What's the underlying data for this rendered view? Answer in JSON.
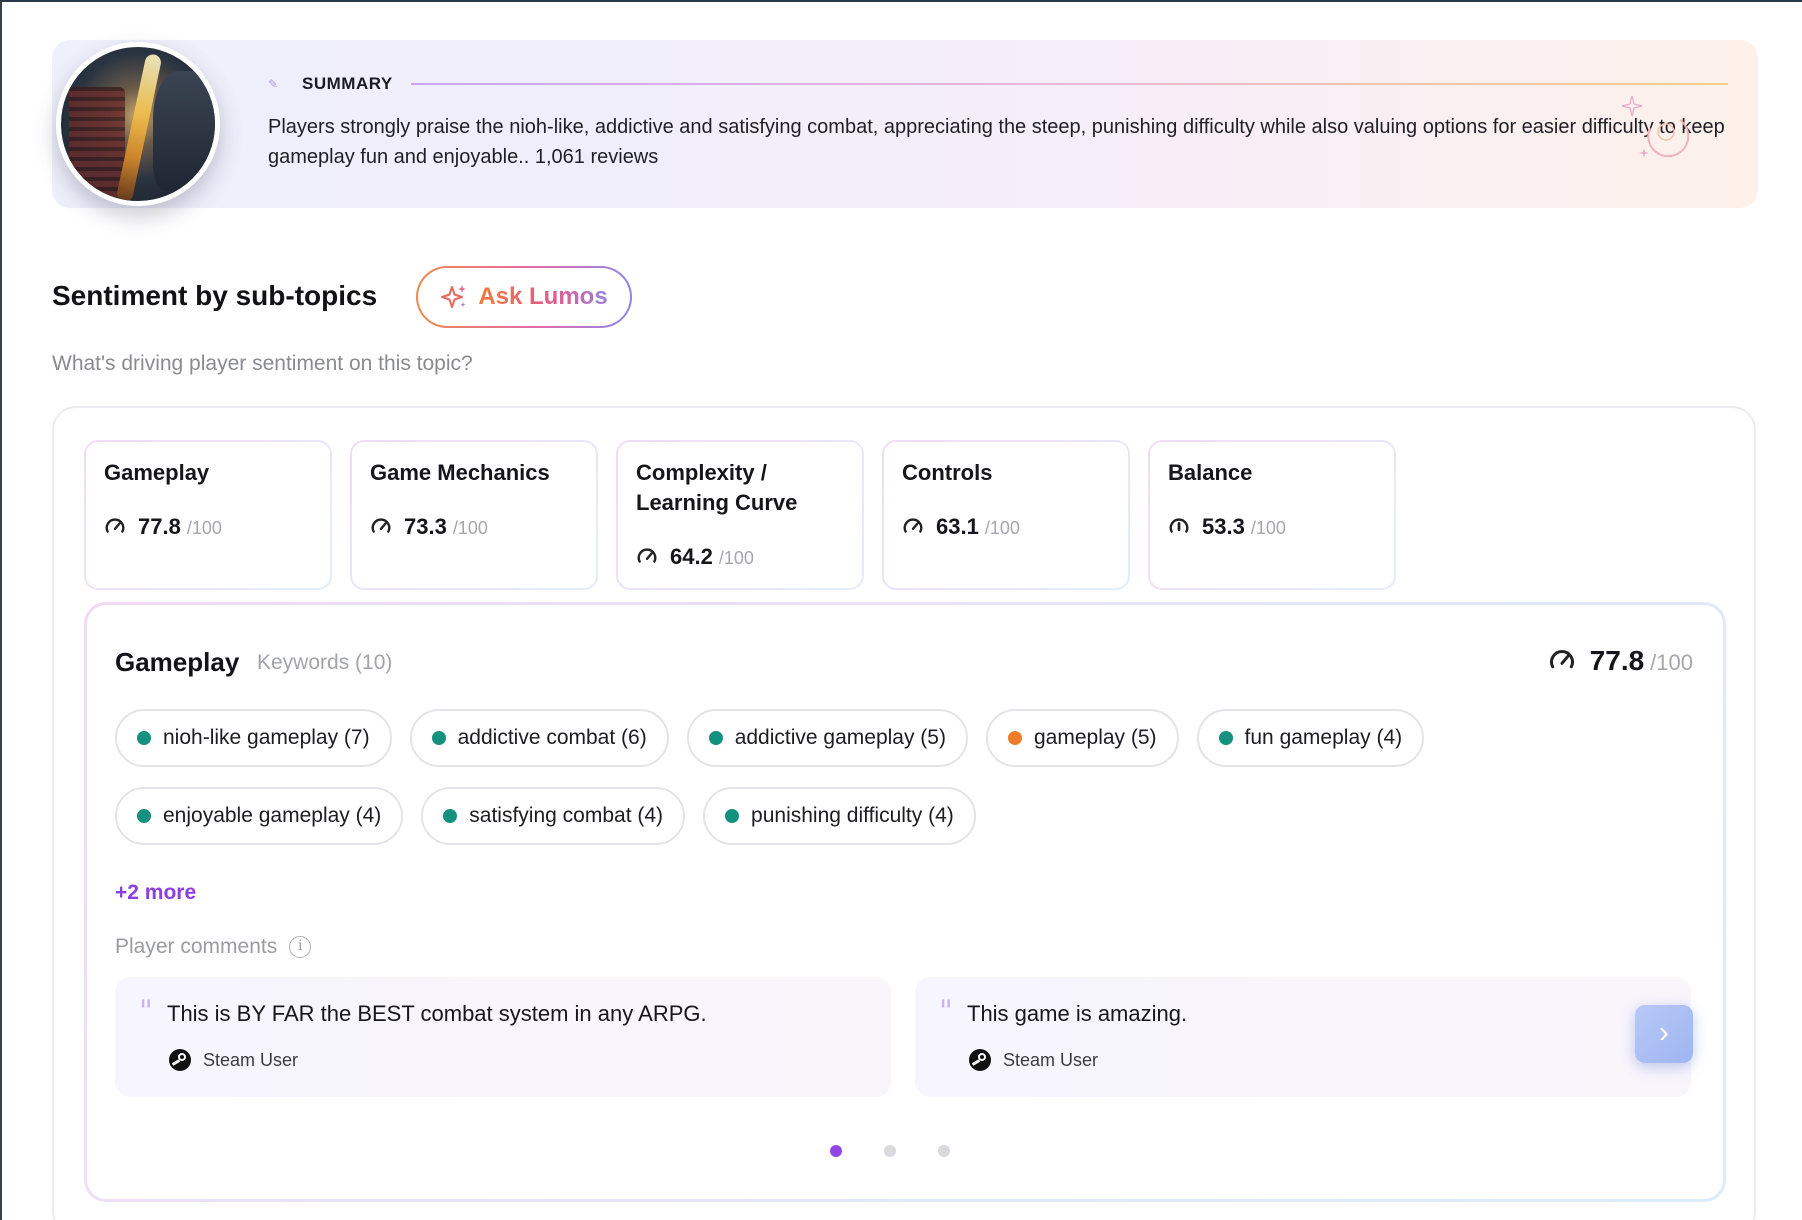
{
  "summary": {
    "label": "SUMMARY",
    "text": "Players strongly praise the nioh-like, addictive and satisfying combat, appreciating the steep, punishing difficulty while also valuing options for easier difficulty to keep gameplay fun and enjoyable.. 1,061 reviews"
  },
  "section": {
    "title": "Sentiment by sub-topics",
    "ask_button": "Ask Lumos",
    "subtitle": "What's driving player sentiment on this topic?"
  },
  "topics": [
    {
      "name": "Gameplay",
      "score": "77.8",
      "max": "/100"
    },
    {
      "name": "Game Mechanics",
      "score": "73.3",
      "max": "/100"
    },
    {
      "name": "Complexity / Learning Curve",
      "score": "64.2",
      "max": "/100"
    },
    {
      "name": "Controls",
      "score": "63.1",
      "max": "/100"
    },
    {
      "name": "Balance",
      "score": "53.3",
      "max": "/100"
    }
  ],
  "detail": {
    "title": "Gameplay",
    "keywords_label": "Keywords (10)",
    "score": "77.8",
    "max": "/100",
    "keywords": [
      {
        "label": "nioh-like gameplay (7)",
        "sentiment": "positive"
      },
      {
        "label": "addictive combat (6)",
        "sentiment": "positive"
      },
      {
        "label": "addictive gameplay (5)",
        "sentiment": "positive"
      },
      {
        "label": "gameplay (5)",
        "sentiment": "negative"
      },
      {
        "label": "fun gameplay (4)",
        "sentiment": "positive"
      },
      {
        "label": "enjoyable gameplay (4)",
        "sentiment": "positive"
      },
      {
        "label": "satisfying combat (4)",
        "sentiment": "positive"
      },
      {
        "label": "punishing difficulty (4)",
        "sentiment": "positive"
      }
    ],
    "more_link": "+2 more",
    "comments_label": "Player comments",
    "comments": [
      {
        "text": "This is BY FAR the BEST combat system in any ARPG.",
        "user": "Steam User"
      },
      {
        "text": "This game is amazing.",
        "user": "Steam User"
      }
    ],
    "pagination": {
      "pages": 3,
      "active_page": 1
    }
  },
  "colors": {
    "positive": "#14917f",
    "negative": "#ef7c2b",
    "accent": "#9146e6"
  },
  "icons": {
    "gauge": "gauge-icon",
    "balance_gauge": "balance-gauge-icon",
    "steam": "steam-icon",
    "info": "info-icon",
    "next": "chevron-right-icon",
    "sparkle": "sparkle-icon"
  }
}
